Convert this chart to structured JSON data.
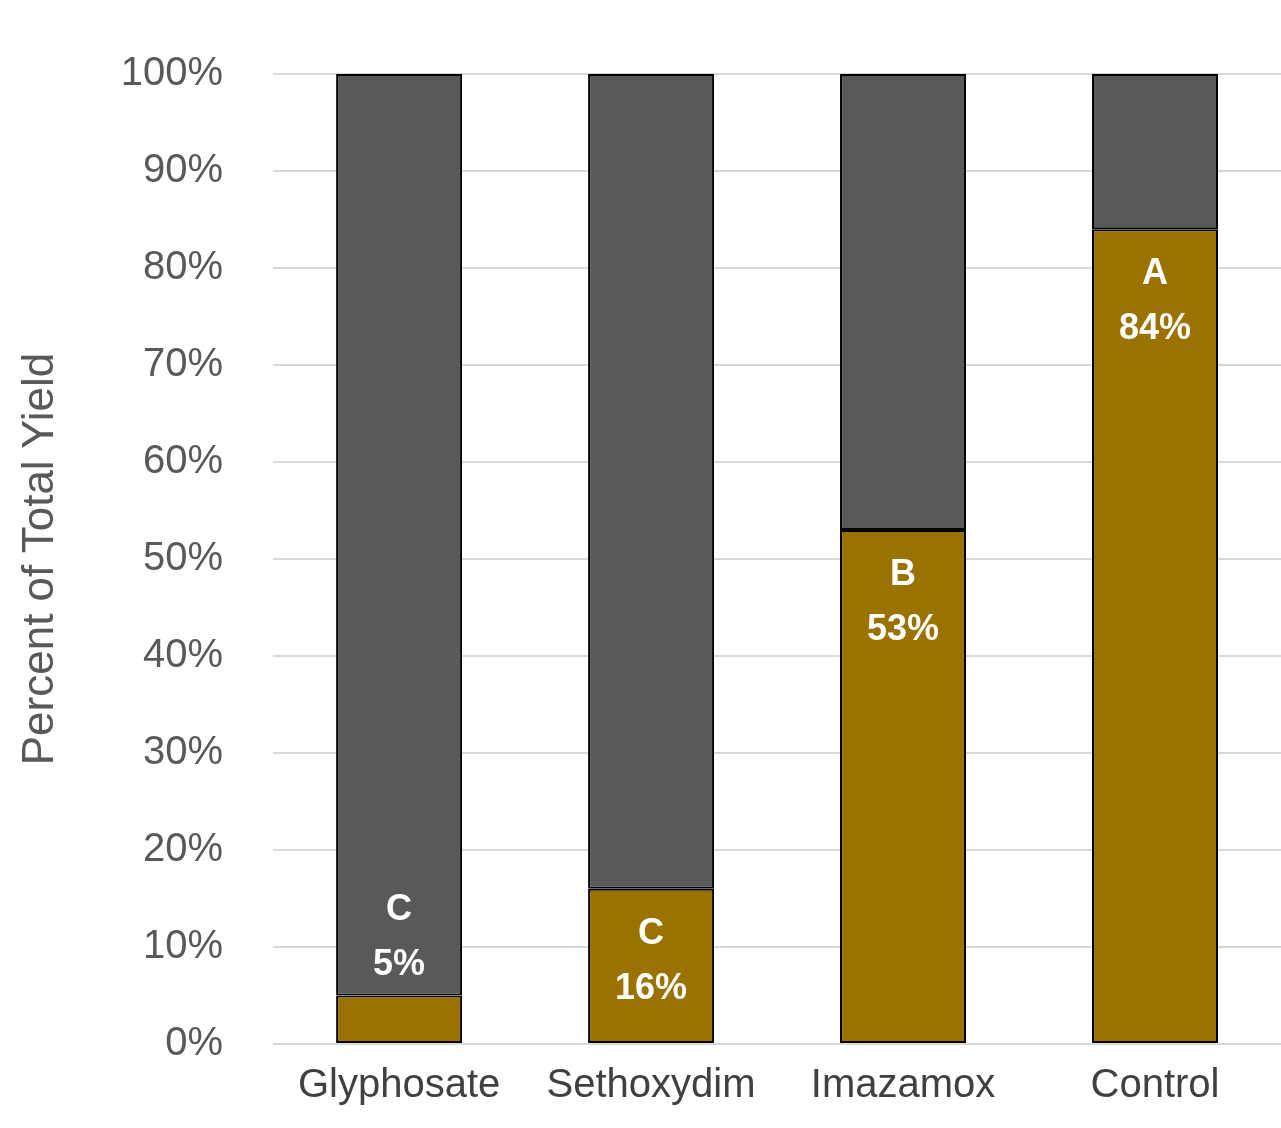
{
  "chart_data": {
    "type": "bar",
    "stacked": true,
    "ylabel": "Percent of Total Yield",
    "categories": [
      "Glyphosate",
      "Sethoxydim",
      "Imazamox",
      "Control"
    ],
    "series": [
      {
        "color": "#9a7200",
        "values": [
          5,
          16,
          53,
          84
        ],
        "value_labels": [
          "C\n5%",
          "C\n16%",
          "B\n53%",
          "A\n84%"
        ]
      },
      {
        "color": "#595959",
        "values": [
          95,
          84,
          47,
          16
        ]
      }
    ],
    "ylim": [
      0,
      100
    ],
    "yticks": [
      {
        "value": 0,
        "label": "0%"
      },
      {
        "value": 10,
        "label": "10%"
      },
      {
        "value": 20,
        "label": "20%"
      },
      {
        "value": 30,
        "label": "30%"
      },
      {
        "value": 40,
        "label": "40%"
      },
      {
        "value": 50,
        "label": "50%"
      },
      {
        "value": 60,
        "label": "60%"
      },
      {
        "value": 70,
        "label": "70%"
      },
      {
        "value": 80,
        "label": "80%"
      },
      {
        "value": 90,
        "label": "90%"
      },
      {
        "value": 100,
        "label": "100%"
      }
    ],
    "grid": "y",
    "legend": false
  }
}
